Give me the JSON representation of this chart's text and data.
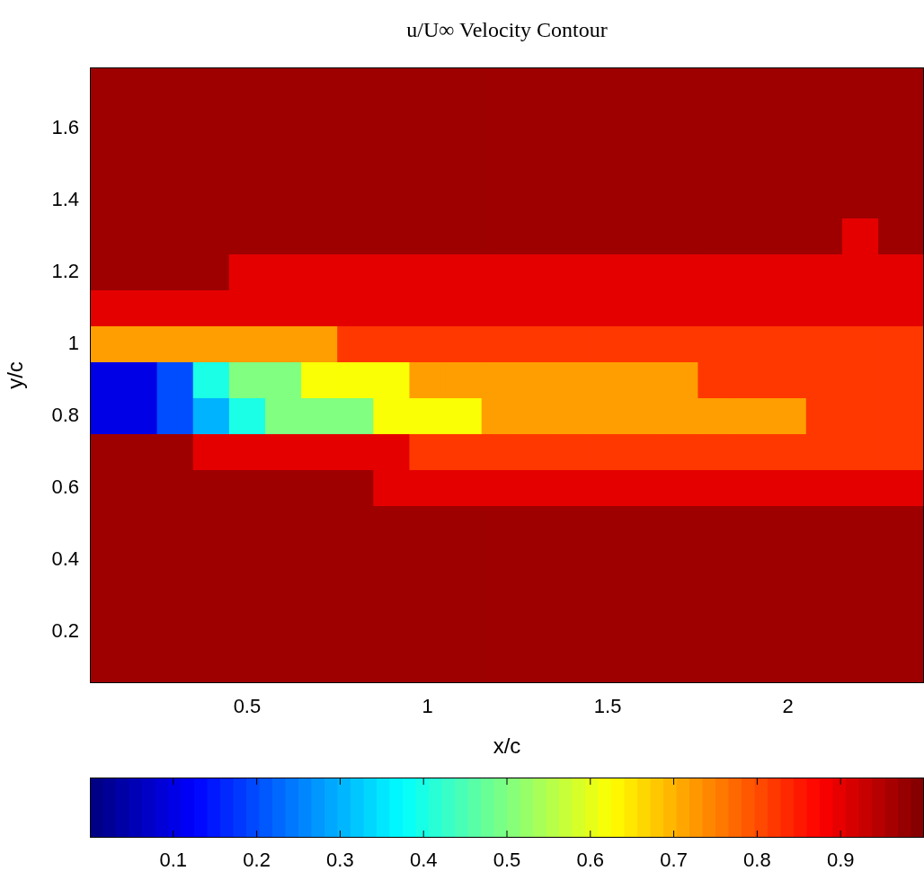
{
  "chart_data": {
    "type": "heatmap",
    "title": "u/U∞ Velocity Contour",
    "xlabel": "x/c",
    "ylabel": "y/c",
    "x": [
      0.1,
      0.2,
      0.3,
      0.4,
      0.5,
      0.6,
      0.7,
      0.8,
      0.9,
      1.0,
      1.1,
      1.2,
      1.3,
      1.4,
      1.5,
      1.6,
      1.7,
      1.8,
      1.9,
      2.0,
      2.1,
      2.2,
      2.3
    ],
    "y": [
      1.7,
      1.6,
      1.5,
      1.4,
      1.3,
      1.2,
      1.1,
      1.0,
      0.9,
      0.8,
      0.7,
      0.6,
      0.5,
      0.4,
      0.3,
      0.2,
      0.1
    ],
    "cells": [
      [
        0.97,
        0.97,
        0.97,
        0.97,
        0.97,
        0.97,
        0.97,
        0.97,
        0.97,
        0.97,
        0.97,
        0.97,
        0.97,
        0.97,
        0.97,
        0.97,
        0.97,
        0.97,
        0.97,
        0.97,
        0.97,
        0.97,
        0.97
      ],
      [
        0.97,
        0.97,
        0.97,
        0.97,
        0.97,
        0.97,
        0.97,
        0.97,
        0.97,
        0.97,
        0.97,
        0.97,
        0.97,
        0.97,
        0.97,
        0.97,
        0.97,
        0.97,
        0.97,
        0.97,
        0.97,
        0.97,
        0.97
      ],
      [
        0.97,
        0.97,
        0.97,
        0.97,
        0.97,
        0.97,
        0.97,
        0.97,
        0.97,
        0.97,
        0.97,
        0.97,
        0.97,
        0.97,
        0.97,
        0.97,
        0.97,
        0.97,
        0.97,
        0.97,
        0.97,
        0.97,
        0.97
      ],
      [
        0.97,
        0.97,
        0.97,
        0.97,
        0.97,
        0.97,
        0.97,
        0.97,
        0.97,
        0.97,
        0.97,
        0.97,
        0.97,
        0.97,
        0.97,
        0.97,
        0.97,
        0.97,
        0.97,
        0.97,
        0.97,
        0.97,
        0.97
      ],
      [
        0.97,
        0.97,
        0.97,
        0.97,
        0.97,
        0.97,
        0.97,
        0.97,
        0.97,
        0.97,
        0.97,
        0.97,
        0.97,
        0.97,
        0.97,
        0.97,
        0.97,
        0.97,
        0.97,
        0.97,
        0.97,
        0.9,
        0.97
      ],
      [
        0.97,
        0.97,
        0.97,
        0.97,
        0.9,
        0.9,
        0.9,
        0.9,
        0.9,
        0.9,
        0.9,
        0.9,
        0.9,
        0.9,
        0.9,
        0.9,
        0.9,
        0.9,
        0.9,
        0.9,
        0.9,
        0.9,
        0.9
      ],
      [
        0.9,
        0.9,
        0.9,
        0.9,
        0.9,
        0.9,
        0.9,
        0.9,
        0.9,
        0.9,
        0.9,
        0.9,
        0.9,
        0.9,
        0.9,
        0.9,
        0.9,
        0.9,
        0.9,
        0.9,
        0.9,
        0.9,
        0.9
      ],
      [
        0.72,
        0.72,
        0.72,
        0.72,
        0.72,
        0.72,
        0.72,
        0.82,
        0.82,
        0.82,
        0.82,
        0.82,
        0.82,
        0.82,
        0.82,
        0.82,
        0.82,
        0.82,
        0.82,
        0.82,
        0.82,
        0.82,
        0.82
      ],
      [
        0.1,
        0.1,
        0.2,
        0.4,
        0.5,
        0.5,
        0.62,
        0.62,
        0.62,
        0.72,
        0.72,
        0.72,
        0.72,
        0.72,
        0.72,
        0.72,
        0.72,
        0.82,
        0.82,
        0.82,
        0.82,
        0.82,
        0.82
      ],
      [
        0.1,
        0.1,
        0.2,
        0.3,
        0.4,
        0.5,
        0.5,
        0.5,
        0.62,
        0.62,
        0.62,
        0.72,
        0.72,
        0.72,
        0.72,
        0.72,
        0.72,
        0.72,
        0.72,
        0.72,
        0.82,
        0.82,
        0.82
      ],
      [
        0.97,
        0.97,
        0.97,
        0.9,
        0.9,
        0.9,
        0.9,
        0.9,
        0.9,
        0.82,
        0.82,
        0.82,
        0.82,
        0.82,
        0.82,
        0.82,
        0.82,
        0.82,
        0.82,
        0.82,
        0.82,
        0.82,
        0.82
      ],
      [
        0.97,
        0.97,
        0.97,
        0.97,
        0.97,
        0.97,
        0.97,
        0.97,
        0.9,
        0.9,
        0.9,
        0.9,
        0.9,
        0.9,
        0.9,
        0.9,
        0.9,
        0.9,
        0.9,
        0.9,
        0.9,
        0.9,
        0.9
      ],
      [
        0.97,
        0.97,
        0.97,
        0.97,
        0.97,
        0.97,
        0.97,
        0.97,
        0.97,
        0.97,
        0.97,
        0.97,
        0.97,
        0.97,
        0.97,
        0.97,
        0.97,
        0.97,
        0.97,
        0.97,
        0.97,
        0.97,
        0.97
      ],
      [
        0.97,
        0.97,
        0.97,
        0.97,
        0.97,
        0.97,
        0.97,
        0.97,
        0.97,
        0.97,
        0.97,
        0.97,
        0.97,
        0.97,
        0.97,
        0.97,
        0.97,
        0.97,
        0.97,
        0.97,
        0.97,
        0.97,
        0.97
      ],
      [
        0.97,
        0.97,
        0.97,
        0.97,
        0.97,
        0.97,
        0.97,
        0.97,
        0.97,
        0.97,
        0.97,
        0.97,
        0.97,
        0.97,
        0.97,
        0.97,
        0.97,
        0.97,
        0.97,
        0.97,
        0.97,
        0.97,
        0.97
      ],
      [
        0.97,
        0.97,
        0.97,
        0.97,
        0.97,
        0.97,
        0.97,
        0.97,
        0.97,
        0.97,
        0.97,
        0.97,
        0.97,
        0.97,
        0.97,
        0.97,
        0.97,
        0.97,
        0.97,
        0.97,
        0.97,
        0.97,
        0.97
      ],
      [
        0.97,
        0.97,
        0.97,
        0.97,
        0.97,
        0.97,
        0.97,
        0.97,
        0.97,
        0.97,
        0.97,
        0.97,
        0.97,
        0.97,
        0.97,
        0.97,
        0.97,
        0.97,
        0.97,
        0.97,
        0.97,
        0.97,
        0.97
      ]
    ],
    "xlim": [
      0.064,
      2.377
    ],
    "xticks": [
      0.5,
      1,
      1.5,
      2
    ],
    "ylim": [
      0.0575,
      1.77
    ],
    "yticks": [
      0.2,
      0.4,
      0.6,
      0.8,
      1,
      1.2,
      1.4,
      1.6
    ],
    "clim": [
      0,
      1
    ],
    "cticks": [
      0.1,
      0.2,
      0.3,
      0.4,
      0.5,
      0.6,
      0.7,
      0.8,
      0.9
    ]
  }
}
